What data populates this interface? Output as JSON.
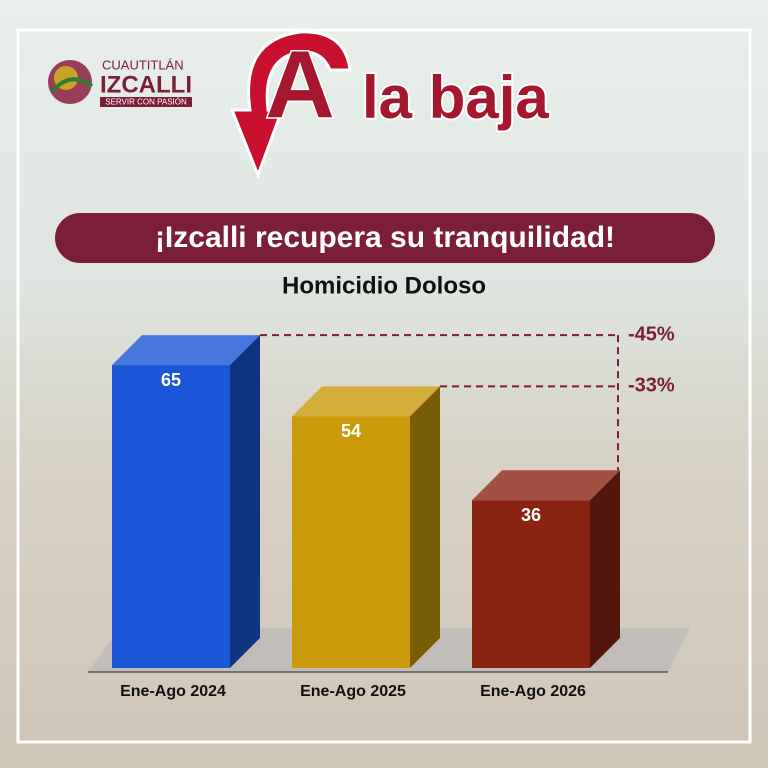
{
  "header": {
    "logo_top": "CUAUTITLÁN",
    "logo_main": "IZCALLI",
    "logo_tagline": "SERVIR CON PASIÓN",
    "headline_letter": "A",
    "headline_rest": "la baja",
    "banner": "¡Izcalli recupera su tranquilidad!"
  },
  "chart_data": {
    "type": "bar",
    "title": "Homicidio Doloso",
    "categories": [
      "Ene-Ago 2024",
      "Ene-Ago 2025",
      "Ene-Ago 2026"
    ],
    "values": [
      65,
      54,
      36
    ],
    "colors": [
      "#1a56d6",
      "#c99a0a",
      "#8a2411"
    ],
    "annotations": [
      "-45%",
      "-33%"
    ]
  }
}
